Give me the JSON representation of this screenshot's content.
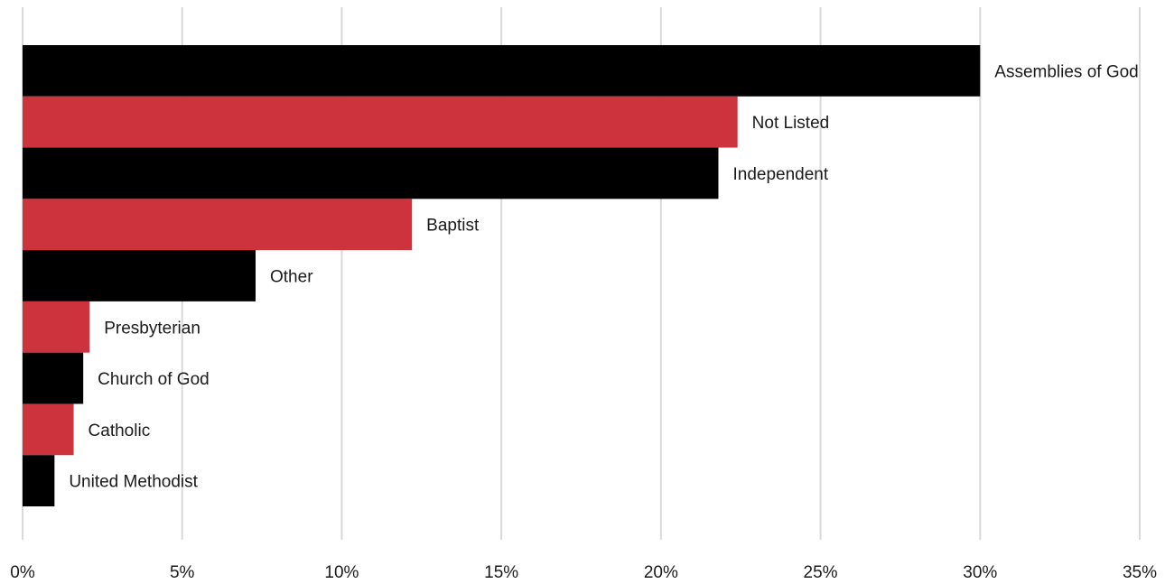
{
  "chart_data": {
    "type": "bar",
    "orientation": "horizontal",
    "title": "",
    "xlabel": "",
    "ylabel": "",
    "xlim": [
      0,
      35
    ],
    "x_ticks": [
      "0%",
      "5%",
      "10%",
      "15%",
      "20%",
      "25%",
      "30%",
      "35%"
    ],
    "grid": "vertical",
    "legend": "none",
    "labels_position": "end-of-bar",
    "colors": [
      "#000000",
      "#cc333d"
    ],
    "categories": [
      "Assemblies of God",
      "Not Listed",
      "Independent",
      "Baptist",
      "Other",
      "Presbyterian",
      "Church of God",
      "Catholic",
      "United Methodist"
    ],
    "values": [
      30.0,
      22.4,
      21.8,
      12.2,
      7.3,
      2.1,
      1.9,
      1.6,
      1.0
    ]
  }
}
